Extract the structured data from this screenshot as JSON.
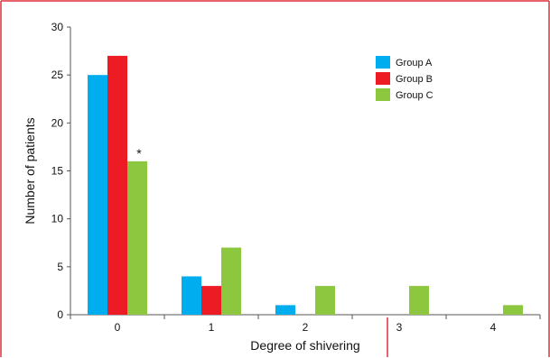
{
  "chart_data": {
    "type": "bar",
    "categories": [
      "0",
      "1",
      "2",
      "3",
      "4"
    ],
    "series": [
      {
        "name": "Group A",
        "values": [
          25,
          4,
          1,
          0,
          0
        ],
        "color": "#00AEEF"
      },
      {
        "name": "Group B",
        "values": [
          27,
          3,
          0,
          0,
          0
        ],
        "color": "#ED1C24"
      },
      {
        "name": "Group C",
        "values": [
          16,
          7,
          3,
          3,
          1
        ],
        "color": "#8DC63F"
      }
    ],
    "xlabel": "Degree of shivering",
    "ylabel": "Number of patients",
    "ylim": [
      0,
      30
    ],
    "yticks": [
      0,
      5,
      10,
      15,
      20,
      25,
      30
    ],
    "grid": false,
    "legend_position": "top-right",
    "annotations": [
      {
        "text": "*",
        "category": "0",
        "series": "Group C"
      }
    ],
    "frame_color": "#E0303A"
  }
}
